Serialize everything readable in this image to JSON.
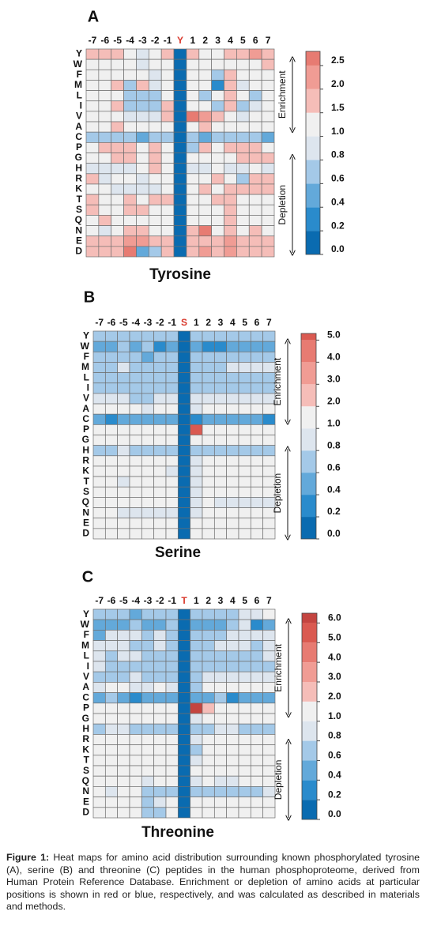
{
  "chart_data": [
    {
      "type": "heatmap",
      "panel": "A",
      "title": "Tyrosine",
      "site_color": "#d9382c",
      "center": 1,
      "x_categories": [
        "-7",
        "-6",
        "-5",
        "-4",
        "-3",
        "-2",
        "-1",
        "Y",
        "1",
        "2",
        "3",
        "4",
        "5",
        "6",
        "7"
      ],
      "y_categories": [
        "Y",
        "W",
        "F",
        "M",
        "L",
        "I",
        "V",
        "A",
        "C",
        "P",
        "G",
        "H",
        "R",
        "K",
        "T",
        "S",
        "Q",
        "N",
        "E",
        "D"
      ],
      "values": [
        [
          1.5,
          1.8,
          1.5,
          1.0,
          0.8,
          1.0,
          1.5,
          0,
          1.6,
          1.0,
          1.0,
          1.5,
          1.5,
          2.0,
          1.5
        ],
        [
          1.0,
          1.0,
          1.0,
          1.0,
          0.8,
          1.0,
          1.0,
          0,
          1.0,
          1.0,
          1.0,
          1.0,
          1.0,
          1.0,
          1.5
        ],
        [
          1.0,
          1.0,
          1.0,
          1.0,
          1.0,
          0.8,
          1.0,
          0,
          1.0,
          1.0,
          0.7,
          1.5,
          1.0,
          1.0,
          1.0
        ],
        [
          1.0,
          1.0,
          1.5,
          0.7,
          1.5,
          0.8,
          1.0,
          0,
          1.0,
          1.0,
          0.2,
          1.5,
          0.8,
          1.0,
          1.0
        ],
        [
          1.0,
          1.0,
          1.0,
          0.6,
          0.6,
          0.6,
          1.0,
          0,
          1.0,
          0.6,
          1.0,
          1.5,
          1.0,
          0.6,
          1.0
        ],
        [
          1.0,
          1.0,
          1.5,
          0.6,
          0.6,
          0.6,
          1.5,
          0,
          1.0,
          1.0,
          0.6,
          1.5,
          0.6,
          0.8,
          1.0
        ],
        [
          1.0,
          1.0,
          1.0,
          0.8,
          0.8,
          0.8,
          1.5,
          0,
          2.8,
          2.0,
          1.5,
          1.0,
          0.8,
          1.0,
          1.0
        ],
        [
          1.0,
          1.0,
          1.5,
          1.0,
          1.0,
          1.0,
          1.0,
          0,
          1.0,
          1.5,
          1.0,
          1.0,
          1.0,
          1.0,
          1.0
        ],
        [
          0.6,
          0.6,
          0.6,
          0.6,
          0.4,
          0.6,
          0.6,
          0,
          0.6,
          0.4,
          0.6,
          0.6,
          0.6,
          0.6,
          0.4
        ],
        [
          1.0,
          1.5,
          1.5,
          1.5,
          1.0,
          1.5,
          1.0,
          0,
          0.6,
          1.5,
          1.0,
          1.5,
          1.5,
          1.5,
          1.0
        ],
        [
          1.0,
          1.0,
          1.5,
          1.5,
          1.0,
          1.5,
          1.0,
          0,
          1.0,
          1.0,
          1.0,
          1.0,
          1.5,
          1.5,
          1.5
        ],
        [
          0.8,
          0.8,
          0.8,
          0.8,
          1.0,
          1.5,
          1.0,
          0,
          0.8,
          0.8,
          1.0,
          0.8,
          0.8,
          1.0,
          0.8
        ],
        [
          1.5,
          0.8,
          1.0,
          1.0,
          0.8,
          1.0,
          1.0,
          0,
          1.0,
          1.0,
          1.5,
          1.0,
          0.6,
          1.5,
          1.5
        ],
        [
          1.0,
          1.0,
          0.8,
          0.8,
          0.8,
          0.8,
          1.0,
          0,
          1.0,
          1.5,
          1.0,
          1.5,
          1.5,
          1.5,
          1.5
        ],
        [
          1.5,
          1.0,
          1.0,
          1.5,
          1.0,
          1.5,
          1.5,
          0,
          1.0,
          1.0,
          1.5,
          1.5,
          1.0,
          1.0,
          1.0
        ],
        [
          1.5,
          1.0,
          1.0,
          1.5,
          1.5,
          1.0,
          1.0,
          0,
          1.0,
          1.0,
          1.0,
          1.5,
          1.0,
          1.0,
          1.0
        ],
        [
          1.0,
          1.5,
          1.0,
          1.0,
          1.0,
          1.0,
          1.0,
          0,
          1.0,
          1.0,
          1.0,
          1.5,
          1.0,
          1.0,
          1.0
        ],
        [
          1.0,
          0.8,
          1.0,
          1.5,
          1.5,
          1.0,
          1.0,
          0,
          1.5,
          2.8,
          1.0,
          1.5,
          1.0,
          1.5,
          1.0
        ],
        [
          1.5,
          1.5,
          1.5,
          2.0,
          2.0,
          1.5,
          1.5,
          0,
          1.5,
          1.5,
          1.5,
          2.0,
          1.5,
          1.5,
          1.5
        ],
        [
          1.5,
          1.5,
          1.5,
          2.8,
          0.4,
          0.6,
          1.5,
          0,
          1.5,
          2.0,
          1.5,
          2.0,
          1.5,
          1.5,
          1.5
        ]
      ],
      "ylim": [
        0,
        2.8
      ],
      "yticks": [
        {
          "value": 0,
          "label": "0.0"
        },
        0.2,
        0.4,
        0.6,
        0.8,
        {
          "value": 1,
          "label": "1.0"
        },
        1.5,
        {
          "value": 2,
          "label": "2.0"
        },
        2.5
      ],
      "annotations": [
        "Enrichment",
        "Depletion"
      ]
    },
    {
      "type": "heatmap",
      "panel": "B",
      "title": "Serine",
      "site_color": "#d9382c",
      "center": 1,
      "x_categories": [
        "-7",
        "-6",
        "-5",
        "-4",
        "-3",
        "-2",
        "-1",
        "S",
        "1",
        "2",
        "3",
        "4",
        "5",
        "6",
        "7"
      ],
      "y_categories": [
        "Y",
        "W",
        "F",
        "M",
        "L",
        "I",
        "V",
        "A",
        "C",
        "P",
        "G",
        "H",
        "R",
        "K",
        "T",
        "S",
        "Q",
        "N",
        "E",
        "D"
      ],
      "values": [
        [
          0.6,
          0.6,
          0.6,
          0.6,
          0.6,
          0.6,
          0.6,
          0,
          0.6,
          0.6,
          0.6,
          0.6,
          0.6,
          0.6,
          0.6
        ],
        [
          0.4,
          0.4,
          0.6,
          0.4,
          0.6,
          0.2,
          0.4,
          0,
          0.4,
          0.2,
          0.2,
          0.4,
          0.4,
          0.4,
          0.4
        ],
        [
          0.6,
          0.6,
          0.6,
          0.6,
          0.4,
          0.6,
          0.6,
          0,
          0.6,
          0.6,
          0.6,
          0.6,
          0.6,
          0.6,
          0.6
        ],
        [
          0.6,
          0.6,
          0.8,
          0.6,
          0.6,
          0.6,
          0.6,
          0,
          0.6,
          0.6,
          0.6,
          0.8,
          0.8,
          0.8,
          0.8
        ],
        [
          0.6,
          0.6,
          0.6,
          0.6,
          0.6,
          0.6,
          0.6,
          0,
          0.6,
          0.6,
          0.6,
          0.6,
          0.6,
          0.6,
          0.6
        ],
        [
          0.6,
          0.6,
          0.6,
          0.6,
          0.6,
          0.6,
          0.6,
          0,
          0.6,
          0.6,
          0.6,
          0.6,
          0.6,
          0.6,
          0.6
        ],
        [
          0.8,
          0.8,
          0.8,
          0.6,
          0.6,
          0.8,
          0.8,
          0,
          0.8,
          0.8,
          0.8,
          0.8,
          0.8,
          0.8,
          0.8
        ],
        [
          1.0,
          1.0,
          1.0,
          1.0,
          0.8,
          1.0,
          1.0,
          0,
          0.8,
          1.0,
          1.0,
          1.0,
          1.0,
          1.0,
          1.0
        ],
        [
          0.4,
          0.2,
          0.4,
          0.4,
          0.4,
          0.4,
          0.4,
          0,
          0.2,
          0.4,
          0.4,
          0.4,
          0.4,
          0.4,
          0.2
        ],
        [
          1.0,
          1.0,
          1.0,
          1.0,
          1.0,
          1.0,
          1.0,
          0,
          5.2,
          1.0,
          1.0,
          1.0,
          1.0,
          1.0,
          1.0
        ],
        [
          1.0,
          1.0,
          1.0,
          1.0,
          1.0,
          1.0,
          1.0,
          0,
          1.0,
          1.0,
          1.0,
          1.0,
          1.0,
          1.0,
          1.0
        ],
        [
          0.6,
          0.6,
          0.8,
          0.6,
          0.6,
          0.6,
          0.6,
          0,
          0.6,
          0.6,
          0.6,
          0.6,
          0.6,
          0.6,
          0.6
        ],
        [
          1.0,
          1.0,
          1.0,
          1.0,
          1.5,
          1.5,
          1.0,
          0,
          0.8,
          1.0,
          1.0,
          1.0,
          1.0,
          1.0,
          1.0
        ],
        [
          1.0,
          1.0,
          1.0,
          1.0,
          1.0,
          1.0,
          0.8,
          0,
          0.8,
          1.0,
          1.0,
          1.0,
          1.0,
          1.0,
          1.0
        ],
        [
          1.0,
          1.0,
          0.8,
          1.0,
          1.0,
          1.0,
          1.0,
          0,
          0.8,
          1.0,
          1.0,
          1.0,
          1.0,
          1.0,
          1.0
        ],
        [
          1.0,
          1.0,
          1.0,
          1.5,
          1.0,
          1.5,
          1.0,
          0,
          0.8,
          1.0,
          1.0,
          1.0,
          1.0,
          1.0,
          1.0
        ],
        [
          1.0,
          1.0,
          1.0,
          1.0,
          1.0,
          1.0,
          1.0,
          0,
          0.8,
          1.0,
          0.8,
          0.8,
          0.8,
          0.8,
          0.8
        ],
        [
          1.0,
          1.0,
          0.8,
          0.8,
          0.8,
          0.8,
          0.8,
          0,
          0.8,
          1.0,
          1.0,
          1.0,
          1.0,
          1.0,
          1.0
        ],
        [
          1.0,
          1.0,
          1.0,
          1.0,
          1.0,
          1.0,
          1.0,
          0,
          1.0,
          1.0,
          1.5,
          1.0,
          1.0,
          1.0,
          1.0
        ],
        [
          1.0,
          1.0,
          1.0,
          1.0,
          1.0,
          1.0,
          1.0,
          0,
          1.0,
          1.0,
          1.0,
          1.0,
          1.0,
          1.0,
          1.0
        ]
      ],
      "ylim": [
        0,
        5.3
      ],
      "yticks": [
        {
          "value": 0,
          "label": "0.0"
        },
        0.2,
        0.4,
        0.6,
        0.8,
        {
          "value": 1,
          "label": "1.0"
        },
        {
          "value": 2,
          "label": "2.0"
        },
        {
          "value": 3,
          "label": "3.0"
        },
        {
          "value": 4,
          "label": "4.0"
        },
        {
          "value": 5,
          "label": "5.0"
        }
      ],
      "annotations": [
        "Enrichment",
        "Depletion"
      ]
    },
    {
      "type": "heatmap",
      "panel": "C",
      "title": "Threonine",
      "site_color": "#d9382c",
      "center": 1,
      "x_categories": [
        "-7",
        "-6",
        "-5",
        "-4",
        "-3",
        "-2",
        "-1",
        "T",
        "1",
        "2",
        "3",
        "4",
        "5",
        "6",
        "7"
      ],
      "y_categories": [
        "Y",
        "W",
        "F",
        "M",
        "L",
        "I",
        "V",
        "A",
        "C",
        "P",
        "G",
        "H",
        "R",
        "K",
        "T",
        "S",
        "Q",
        "N",
        "E",
        "D"
      ],
      "values": [
        [
          0.6,
          0.6,
          0.6,
          0.4,
          0.6,
          0.6,
          0.6,
          0,
          0.6,
          0.6,
          0.6,
          0.6,
          0.8,
          0.8,
          1.8
        ],
        [
          0.4,
          0.4,
          0.4,
          0.6,
          0.4,
          0.4,
          0.6,
          0,
          0.4,
          0.4,
          0.4,
          0.6,
          0.8,
          0.2,
          0.4
        ],
        [
          0.4,
          0.8,
          0.8,
          0.8,
          0.6,
          0.8,
          0.6,
          0,
          0.6,
          0.6,
          0.6,
          0.8,
          0.8,
          0.8,
          0.8
        ],
        [
          0.8,
          0.8,
          0.8,
          0.6,
          0.6,
          0.8,
          0.6,
          0,
          0.6,
          0.6,
          0.8,
          0.8,
          0.8,
          0.6,
          0.8
        ],
        [
          0.8,
          0.6,
          0.8,
          0.8,
          0.6,
          0.6,
          0.6,
          0,
          0.6,
          0.6,
          0.6,
          0.6,
          0.6,
          0.6,
          0.8
        ],
        [
          0.8,
          0.6,
          0.6,
          0.6,
          0.6,
          0.6,
          0.6,
          0,
          0.6,
          0.6,
          0.6,
          0.6,
          0.6,
          0.6,
          0.6
        ],
        [
          0.6,
          0.6,
          0.6,
          0.8,
          0.6,
          0.6,
          0.6,
          0,
          0.6,
          0.8,
          0.8,
          0.8,
          0.8,
          0.8,
          0.8
        ],
        [
          0.8,
          1.0,
          1.0,
          0.8,
          0.8,
          1.0,
          0.8,
          0,
          0.6,
          1.0,
          1.0,
          1.0,
          1.0,
          1.0,
          1.0
        ],
        [
          0.4,
          0.6,
          0.4,
          0.2,
          0.4,
          0.4,
          0.4,
          0,
          0.4,
          0.4,
          0.6,
          0.2,
          0.4,
          0.4,
          0.4
        ],
        [
          1.0,
          1.0,
          1.0,
          1.0,
          1.0,
          1.0,
          1.0,
          0,
          6.2,
          2.0,
          1.0,
          1.0,
          1.8,
          1.0,
          1.0
        ],
        [
          1.0,
          1.0,
          1.0,
          1.0,
          1.0,
          1.0,
          1.0,
          0,
          0.8,
          1.0,
          1.0,
          1.0,
          1.0,
          1.0,
          1.0
        ],
        [
          0.6,
          0.8,
          0.8,
          0.6,
          0.6,
          0.6,
          0.6,
          0,
          0.6,
          0.6,
          0.8,
          0.8,
          0.6,
          0.6,
          0.6
        ],
        [
          1.0,
          1.0,
          1.0,
          1.0,
          1.8,
          1.0,
          1.0,
          0,
          0.8,
          1.0,
          1.0,
          1.0,
          1.0,
          1.0,
          1.0
        ],
        [
          1.0,
          1.0,
          1.0,
          1.0,
          1.0,
          1.0,
          1.0,
          0,
          0.6,
          1.0,
          1.0,
          1.0,
          1.0,
          1.0,
          1.0
        ],
        [
          1.0,
          1.0,
          1.0,
          1.0,
          1.0,
          1.0,
          1.0,
          0,
          0.8,
          1.0,
          1.0,
          1.8,
          1.0,
          1.0,
          1.0
        ],
        [
          1.0,
          1.0,
          1.0,
          1.0,
          1.0,
          1.0,
          1.0,
          0,
          1.0,
          1.0,
          1.0,
          1.0,
          1.0,
          1.0,
          1.0
        ],
        [
          1.0,
          1.0,
          1.0,
          1.0,
          0.8,
          1.0,
          1.0,
          0,
          0.8,
          1.0,
          0.8,
          0.8,
          1.0,
          1.0,
          1.0
        ],
        [
          1.0,
          0.8,
          1.0,
          1.0,
          0.6,
          0.6,
          0.6,
          0,
          0.6,
          0.6,
          0.6,
          0.6,
          0.6,
          0.6,
          0.8
        ],
        [
          1.0,
          1.0,
          1.0,
          1.0,
          0.6,
          0.8,
          1.0,
          0,
          1.0,
          1.0,
          1.0,
          1.0,
          1.0,
          1.0,
          1.0
        ],
        [
          1.0,
          1.0,
          1.0,
          1.0,
          0.6,
          0.6,
          1.0,
          0,
          1.0,
          1.0,
          1.0,
          1.0,
          1.0,
          1.0,
          1.0
        ]
      ],
      "ylim": [
        0,
        6.5
      ],
      "yticks": [
        {
          "value": 0,
          "label": "0.0"
        },
        0.2,
        0.4,
        0.6,
        0.8,
        {
          "value": 1,
          "label": "1.0"
        },
        {
          "value": 2,
          "label": "2.0"
        },
        {
          "value": 3,
          "label": "3.0"
        },
        {
          "value": 4,
          "label": "4.0"
        },
        {
          "value": 5,
          "label": "5.0"
        },
        {
          "value": 6,
          "label": "6.0"
        }
      ],
      "annotations": [
        "Enrichment",
        "Depletion"
      ]
    }
  ],
  "caption": {
    "label": "Figure 1:",
    "text": "Heat maps for amino acid distribution surrounding known phosphorylated tyrosine (A), serine (B) and threonine (C) peptides in the human phosphoproteome, derived from Human Protein Reference Database. Enrichment or depletion of amino acids at particular positions is shown in red or blue, respectively, and was calculated as described in materials and methods."
  }
}
